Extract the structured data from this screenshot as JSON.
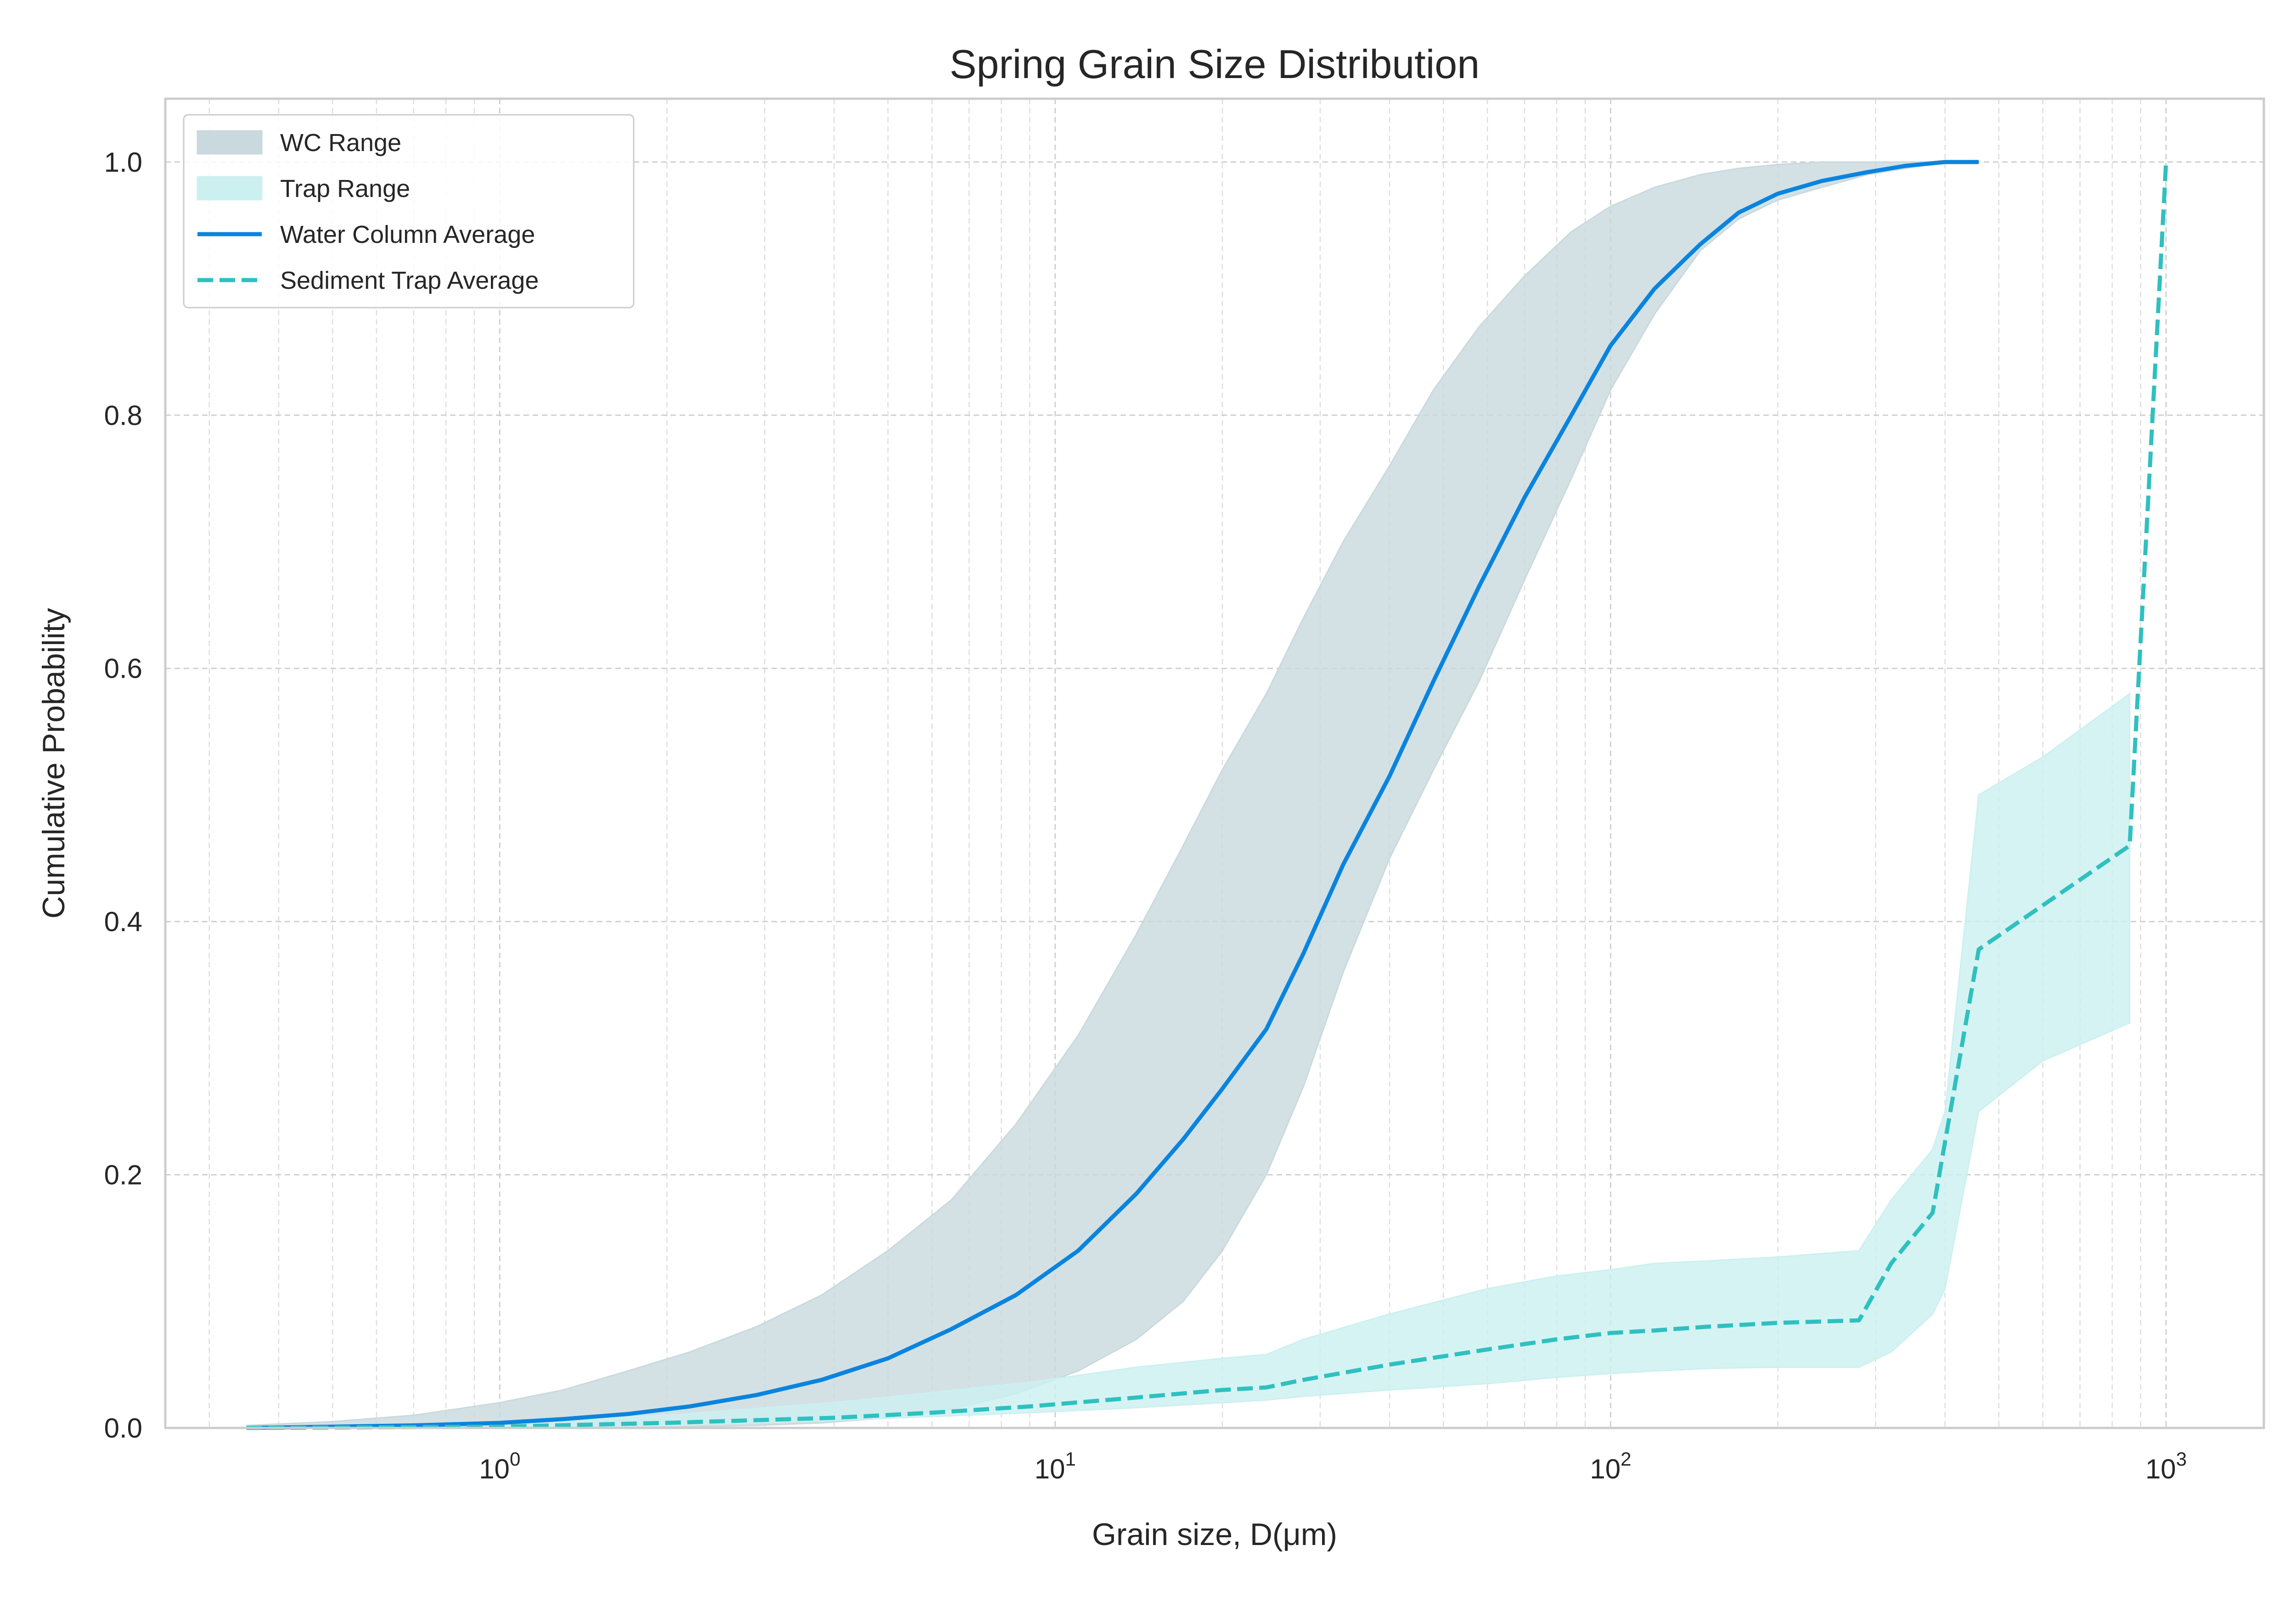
{
  "chart_data": {
    "type": "line",
    "title": "Spring Grain Size Distribution",
    "xlabel": "Grain size, D(μm)",
    "ylabel": "Cumulative Probability",
    "xscale": "log",
    "xlim": [
      0.25,
      1500
    ],
    "ylim": [
      0,
      1.05
    ],
    "xticks": [
      {
        "value": 1,
        "base": "10",
        "exp": "0"
      },
      {
        "value": 10,
        "base": "10",
        "exp": "1"
      },
      {
        "value": 100,
        "base": "10",
        "exp": "2"
      },
      {
        "value": 1000,
        "base": "10",
        "exp": "3"
      }
    ],
    "yticks": [
      {
        "value": 0.0,
        "label": "0.0"
      },
      {
        "value": 0.2,
        "label": "0.2"
      },
      {
        "value": 0.4,
        "label": "0.4"
      },
      {
        "value": 0.6,
        "label": "0.6"
      },
      {
        "value": 0.8,
        "label": "0.8"
      },
      {
        "value": 1.0,
        "label": "1.0"
      }
    ],
    "grid": true,
    "legend_position": "top-left",
    "legend": [
      {
        "label": "WC Range",
        "kind": "fill",
        "color": "#c9d9dd"
      },
      {
        "label": "Trap Range",
        "kind": "fill",
        "color": "#ccf0f0"
      },
      {
        "label": "Water Column Average",
        "kind": "line",
        "color": "#0a84de"
      },
      {
        "label": "Sediment Trap Average",
        "kind": "dashed",
        "color": "#2fc0c0"
      }
    ],
    "bands": [
      {
        "name": "WC Range",
        "color": "#c9d9dd",
        "x": [
          0.35,
          0.5,
          0.7,
          1.0,
          1.3,
          1.7,
          2.2,
          2.9,
          3.8,
          5.0,
          6.5,
          8.5,
          11,
          14,
          17,
          20,
          24,
          28,
          33,
          40,
          48,
          58,
          70,
          85,
          100,
          120,
          145,
          170,
          200,
          240,
          290,
          340,
          400
        ],
        "lower": [
          0,
          0,
          0,
          0,
          0,
          0,
          0.001,
          0.002,
          0.004,
          0.008,
          0.015,
          0.027,
          0.045,
          0.07,
          0.1,
          0.14,
          0.2,
          0.27,
          0.36,
          0.45,
          0.52,
          0.59,
          0.67,
          0.75,
          0.82,
          0.88,
          0.93,
          0.955,
          0.97,
          0.98,
          0.99,
          0.995,
          1.0
        ],
        "upper": [
          0.002,
          0.005,
          0.01,
          0.02,
          0.03,
          0.045,
          0.06,
          0.08,
          0.105,
          0.14,
          0.18,
          0.24,
          0.31,
          0.39,
          0.46,
          0.52,
          0.58,
          0.64,
          0.7,
          0.76,
          0.82,
          0.87,
          0.91,
          0.945,
          0.965,
          0.98,
          0.99,
          0.995,
          0.998,
          1.0,
          1.0,
          1.0,
          1.0
        ]
      },
      {
        "name": "Trap Range",
        "color": "#ccf0f0",
        "x": [
          0.35,
          1,
          2,
          4,
          6,
          9,
          14,
          20,
          24,
          28,
          40,
          60,
          80,
          100,
          120,
          150,
          200,
          280,
          320,
          380,
          400,
          460,
          600,
          860
        ],
        "lower": [
          0,
          0,
          0.002,
          0.006,
          0.009,
          0.012,
          0.016,
          0.02,
          0.022,
          0.025,
          0.03,
          0.035,
          0.04,
          0.043,
          0.045,
          0.047,
          0.048,
          0.048,
          0.06,
          0.09,
          0.11,
          0.25,
          0.29,
          0.32
        ],
        "upper": [
          0.001,
          0.004,
          0.01,
          0.02,
          0.028,
          0.036,
          0.048,
          0.055,
          0.058,
          0.07,
          0.09,
          0.11,
          0.12,
          0.125,
          0.13,
          0.132,
          0.135,
          0.14,
          0.18,
          0.22,
          0.25,
          0.5,
          0.53,
          0.58
        ]
      }
    ],
    "series": [
      {
        "name": "Water Column Average",
        "color": "#0a84de",
        "style": "solid",
        "x": [
          0.35,
          0.5,
          0.7,
          1.0,
          1.3,
          1.7,
          2.2,
          2.9,
          3.8,
          5.0,
          6.5,
          8.5,
          11,
          14,
          17,
          20,
          24,
          28,
          33,
          40,
          48,
          58,
          70,
          85,
          100,
          120,
          145,
          170,
          200,
          240,
          290,
          340,
          400,
          460
        ],
        "y": [
          0.0,
          0.001,
          0.002,
          0.004,
          0.007,
          0.011,
          0.017,
          0.026,
          0.038,
          0.055,
          0.078,
          0.105,
          0.14,
          0.185,
          0.228,
          0.268,
          0.315,
          0.375,
          0.445,
          0.515,
          0.59,
          0.665,
          0.735,
          0.8,
          0.855,
          0.9,
          0.935,
          0.96,
          0.975,
          0.985,
          0.992,
          0.997,
          1.0,
          1.0
        ]
      },
      {
        "name": "Sediment Trap Average",
        "color": "#2fc0c0",
        "style": "dashed",
        "x": [
          0.35,
          1,
          2,
          4,
          6,
          9,
          14,
          20,
          24,
          28,
          40,
          60,
          80,
          100,
          120,
          150,
          200,
          280,
          320,
          380,
          460,
          860,
          920,
          1000
        ],
        "y": [
          0,
          0.001,
          0.004,
          0.008,
          0.012,
          0.017,
          0.024,
          0.03,
          0.032,
          0.038,
          0.05,
          0.062,
          0.07,
          0.075,
          0.077,
          0.08,
          0.083,
          0.085,
          0.13,
          0.17,
          0.378,
          0.46,
          0.7,
          1.0
        ]
      }
    ]
  }
}
